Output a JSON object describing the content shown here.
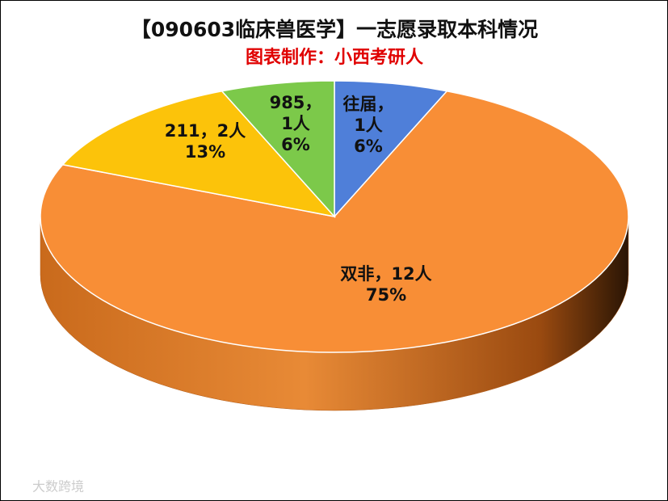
{
  "chart_data": {
    "type": "pie3d",
    "title": "【090603临床兽医学】一志愿录取本科情况",
    "subtitle": "图表制作：小西考研人",
    "categories": [
      "往届",
      "双非",
      "211",
      "985"
    ],
    "separator": "，",
    "values": [
      1,
      12,
      2,
      1
    ],
    "value_labels": [
      "1人",
      "12人",
      "2人",
      "1人"
    ],
    "percent_values": [
      6,
      75,
      13,
      6
    ],
    "percent_labels": [
      "6%",
      "75%",
      "13%",
      "6%"
    ],
    "colors": [
      "#4f7fd9",
      "#f88e36",
      "#fcc30a",
      "#7cc94a"
    ],
    "side_colors": [
      "#2f4f8a",
      "#b25a14",
      "#a07a00",
      "#4b7f25"
    ],
    "watermark": "大数跨境"
  }
}
